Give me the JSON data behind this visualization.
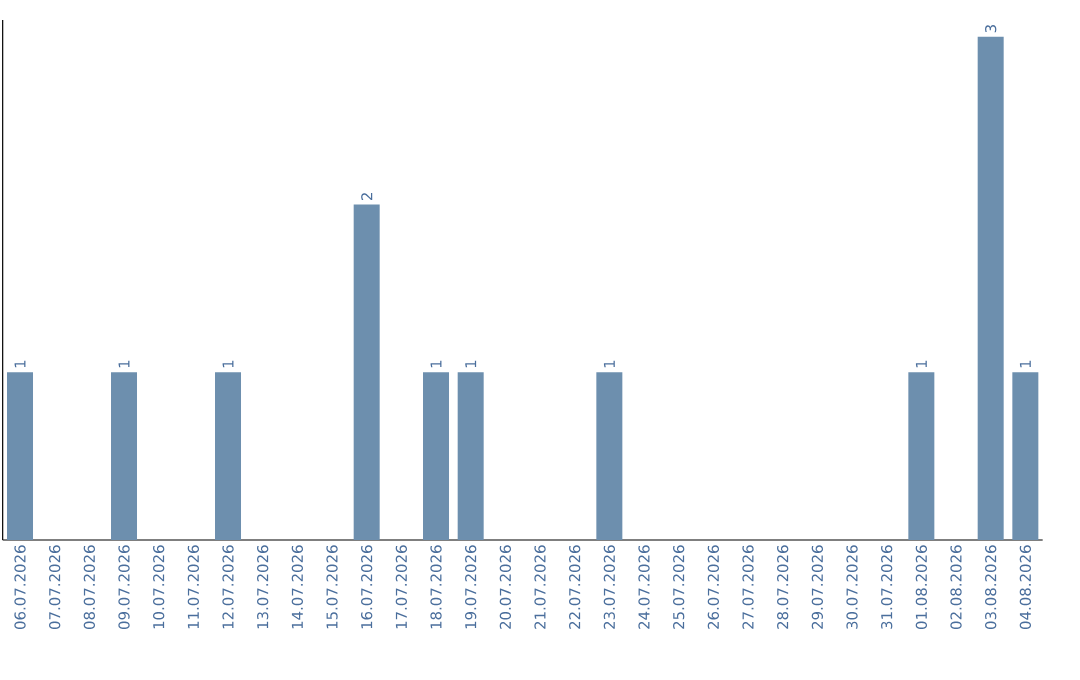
{
  "chart_data": {
    "type": "bar",
    "categories": [
      "06.07.2026",
      "07.07.2026",
      "08.07.2026",
      "09.07.2026",
      "10.07.2026",
      "11.07.2026",
      "12.07.2026",
      "13.07.2026",
      "14.07.2026",
      "15.07.2026",
      "16.07.2026",
      "17.07.2026",
      "18.07.2026",
      "19.07.2026",
      "20.07.2026",
      "21.07.2026",
      "22.07.2026",
      "23.07.2026",
      "24.07.2026",
      "25.07.2026",
      "26.07.2026",
      "27.07.2026",
      "28.07.2026",
      "29.07.2026",
      "30.07.2026",
      "31.07.2026",
      "01.08.2026",
      "02.08.2026",
      "03.08.2026",
      "04.08.2026"
    ],
    "values": [
      1,
      0,
      0,
      1,
      0,
      0,
      1,
      0,
      0,
      0,
      2,
      0,
      1,
      1,
      0,
      0,
      0,
      1,
      0,
      0,
      0,
      0,
      0,
      0,
      0,
      0,
      1,
      0,
      3,
      1
    ],
    "value_labels": [
      "1",
      null,
      null,
      "1",
      null,
      null,
      "1",
      null,
      null,
      null,
      "2",
      null,
      "1",
      "1",
      null,
      null,
      null,
      "1",
      null,
      null,
      null,
      null,
      null,
      null,
      null,
      null,
      "1",
      null,
      "3",
      "1"
    ],
    "color": "#6d8fae",
    "ylim": [
      0,
      3.1
    ],
    "tick_labels": "x"
  }
}
